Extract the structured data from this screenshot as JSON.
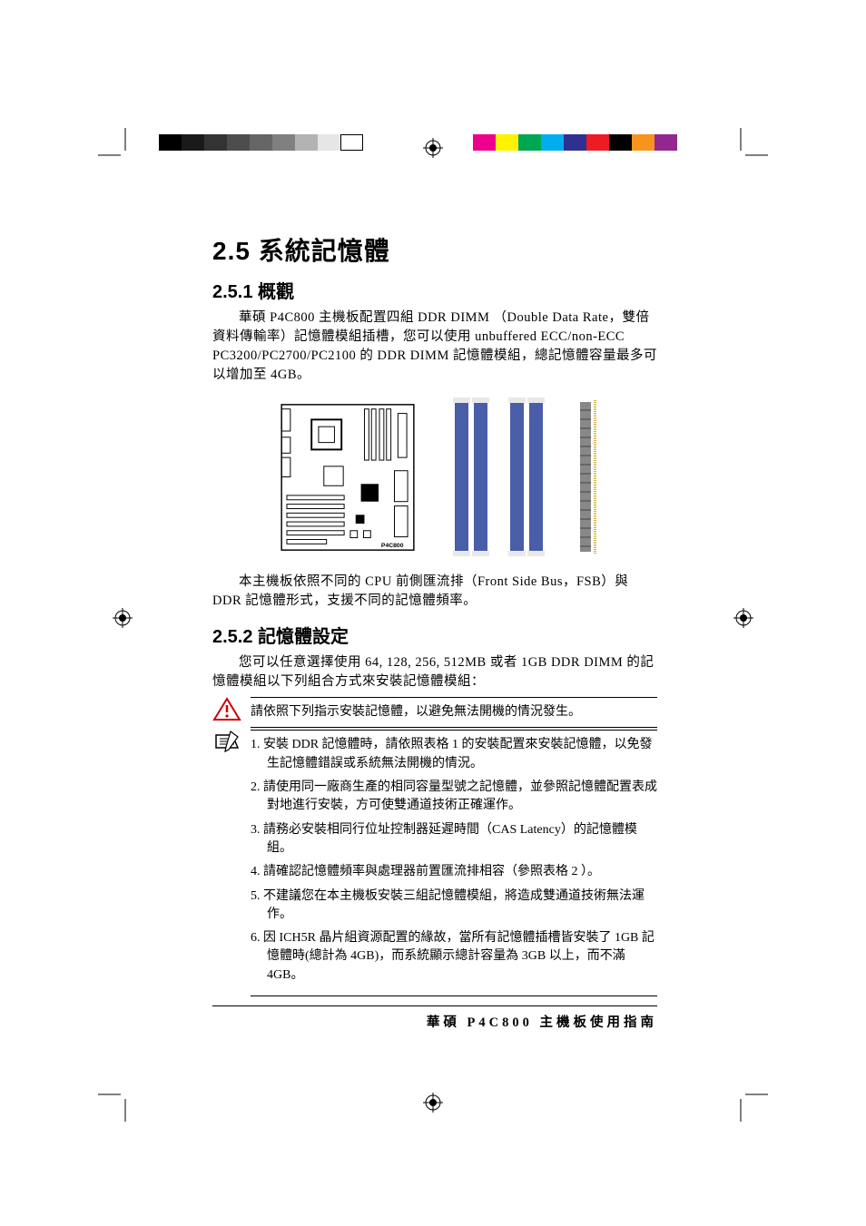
{
  "colors": {
    "left_bar": [
      "#000000",
      "#1a1a1a",
      "#333333",
      "#4d4d4d",
      "#666666",
      "#808080",
      "#b3b3b3",
      "#e6e6e6",
      "#ffffff"
    ],
    "right_bar": [
      "#ec008c",
      "#fff200",
      "#00a651",
      "#00aeef",
      "#2e3192",
      "#ed1c24",
      "#000000",
      "#f7941d",
      "#92278f"
    ],
    "dimm_slot": "#4a5da8",
    "text": "#000000",
    "bg": "#ffffff"
  },
  "heading1": "2.5 系統記憶體",
  "heading2a": "2.5.1 概觀",
  "para1": "華碩 P4C800 主機板配置四組 DDR DIMM （Double Data Rate，雙倍資料傳輸率）記憶體模組插槽，您可以使用 unbuffered ECC/non-ECC PC3200/PC2700/PC2100 的 DDR DIMM 記憶體模組，總記憶體容量最多可以增加至 4GB。",
  "para2": "本主機板依照不同的 CPU 前側匯流排（Front Side Bus，FSB）與 DDR 記憶體形式，支援不同的記憶體頻率。",
  "heading2b": "2.5.2 記憶體設定",
  "para3": "您可以任意選擇使用 64, 128, 256, 512MB 或者 1GB DDR DIMM 的記憶體模組以下列組合方式來安裝記憶體模組：",
  "warn_text": "請依照下列指示安裝記憶體，以避免無法開機的情況發生。",
  "notes": {
    "n1": "1. 安裝 DDR 記憶體時，請依照表格 1 的安裝配置來安裝記憶體，以免發生記憶體錯誤或系統無法開機的情況。",
    "n2": "2. 請使用同一廠商生產的相同容量型號之記憶體，並參照記憶體配置表成對地進行安裝，方可使雙通道技術正確運作。",
    "n3": "3. 請務必安裝相同行位址控制器延遲時間（CAS Latency）的記憶體模組。",
    "n4": "4. 請確認記憶體頻率與處理器前置匯流排相容（參照表格 2 ）。",
    "n5": "5. 不建議您在本主機板安裝三組記憶體模組，將造成雙通道技術無法運作。",
    "n6": "6. 因 ICH5R 晶片組資源配置的緣故，當所有記憶體插槽皆安裝了 1GB 記憶體時(總計為 4GB)，而系統顯示總計容量為 3GB 以上，而不滿 4GB。"
  },
  "footer": "華碩 P4C800 主機板使用指南",
  "mb_label": "P4C800"
}
